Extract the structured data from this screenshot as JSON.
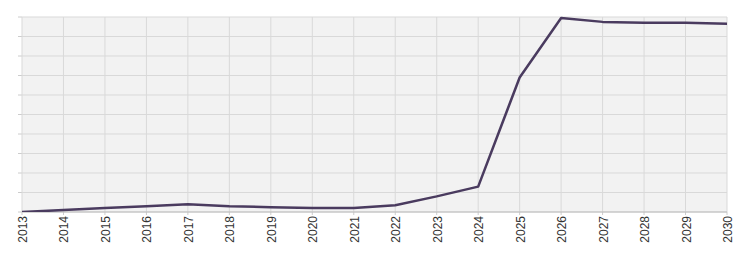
{
  "chart_data": {
    "type": "line",
    "x": [
      2013,
      2014,
      2015,
      2016,
      2017,
      2018,
      2019,
      2020,
      2021,
      2022,
      2023,
      2024,
      2025,
      2026,
      2027,
      2028,
      2029,
      2030
    ],
    "values": [
      0,
      0.1,
      0.2,
      0.3,
      0.4,
      0.3,
      0.25,
      0.2,
      0.2,
      0.35,
      0.8,
      1.3,
      6.9,
      9.95,
      9.75,
      9.7,
      9.7,
      9.65
    ],
    "color": "#4a3b5f",
    "xlim": [
      2013,
      2030
    ],
    "xticks": [
      2013,
      2014,
      2015,
      2016,
      2017,
      2018,
      2019,
      2020,
      2021,
      2022,
      2023,
      2024,
      2025,
      2026,
      2027,
      2028,
      2029,
      2030
    ],
    "ylim": [
      0,
      10
    ],
    "yticks": [
      0,
      1,
      2,
      3,
      4,
      5,
      6,
      7,
      8,
      9,
      10
    ],
    "grid": true,
    "tick_labels": "x"
  }
}
